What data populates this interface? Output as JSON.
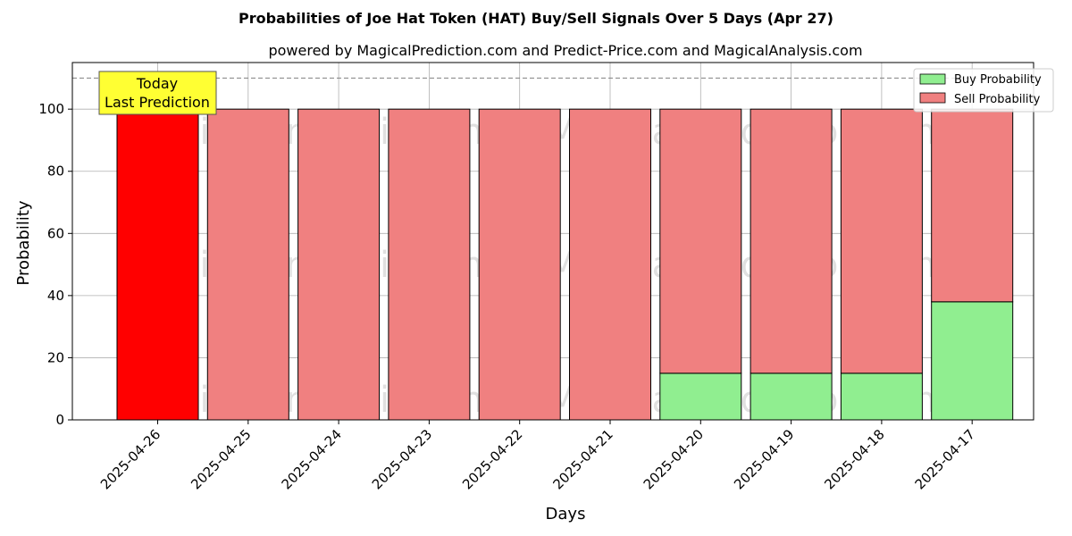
{
  "chart_data": {
    "type": "bar",
    "title": "Probabilities of Joe Hat Token (HAT) Buy/Sell Signals Over 5 Days (Apr 27)",
    "subtitle": "powered by MagicalPrediction.com and Predict-Price.com and MagicalAnalysis.com",
    "xlabel": "Days",
    "ylabel": "Probability",
    "ylim": [
      0,
      115
    ],
    "yticks": [
      0,
      20,
      40,
      60,
      80,
      100
    ],
    "categories": [
      "2025-04-26",
      "2025-04-25",
      "2025-04-24",
      "2025-04-23",
      "2025-04-22",
      "2025-04-21",
      "2025-04-20",
      "2025-04-19",
      "2025-04-18",
      "2025-04-17"
    ],
    "series": [
      {
        "name": "Buy Probability",
        "color": "#90ee90",
        "values": [
          0,
          0,
          0,
          0,
          0,
          0,
          15,
          15,
          15,
          38
        ]
      },
      {
        "name": "Sell Probability",
        "color": "#f08080",
        "values": [
          100,
          100,
          100,
          100,
          100,
          100,
          85,
          85,
          85,
          62
        ]
      }
    ],
    "highlight": {
      "index": 0,
      "color": "#ff0000"
    },
    "reference_line": {
      "y": 110,
      "style": "dashed"
    },
    "annotation": {
      "lines": [
        "Today",
        "Last Prediction"
      ],
      "background": "#ffff33"
    },
    "watermarks": [
      "MagicalAnalysis.com",
      "MagicalPrediction.com"
    ],
    "grid": true,
    "legend_position": "top-right",
    "stacked": true
  }
}
